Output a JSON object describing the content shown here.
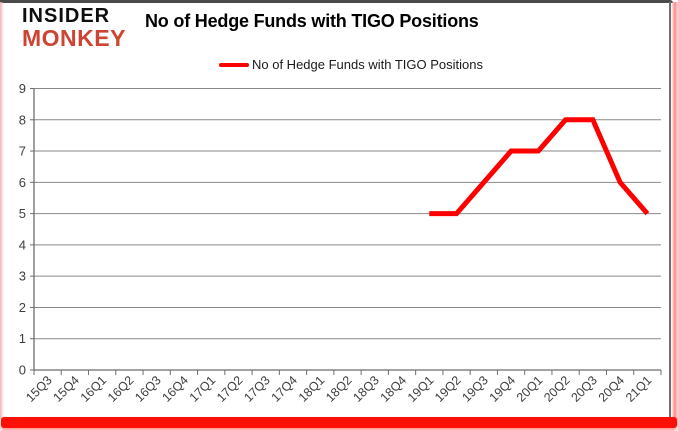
{
  "logo": {
    "line1": "INSIDER",
    "line2": "MONKEY"
  },
  "header": {
    "title": "No of Hedge Funds with TIGO Positions"
  },
  "legend": {
    "label": "No of Hedge Funds with TIGO Positions",
    "swatch_color": "#ff0000"
  },
  "colors": {
    "series_line": "#ff0000",
    "gridline": "#898989",
    "axis": "#6e6e6e",
    "tick_label": "#3f3f3f",
    "logo_red": "#cd4433",
    "frame_glow": "#fb0f06"
  },
  "chart_data": {
    "type": "line",
    "title": "No of Hedge Funds with TIGO Positions",
    "categories": [
      "15Q3",
      "15Q4",
      "16Q1",
      "16Q2",
      "16Q3",
      "16Q4",
      "17Q1",
      "17Q2",
      "17Q3",
      "17Q4",
      "18Q1",
      "18Q2",
      "18Q3",
      "18Q4",
      "19Q1",
      "19Q2",
      "19Q3",
      "19Q4",
      "20Q1",
      "20Q2",
      "20Q3",
      "20Q4",
      "21Q1"
    ],
    "series": [
      {
        "name": "No of Hedge Funds with TIGO Positions",
        "color": "#ff0000",
        "values": [
          null,
          null,
          null,
          null,
          null,
          null,
          null,
          null,
          null,
          null,
          null,
          null,
          null,
          null,
          5,
          5,
          6,
          7,
          7,
          8,
          8,
          6,
          5
        ]
      }
    ],
    "xlabel": "",
    "ylabel": "",
    "ylim": [
      0,
      9
    ],
    "ytick_step": 1,
    "grid": true,
    "legend_position": "top"
  }
}
